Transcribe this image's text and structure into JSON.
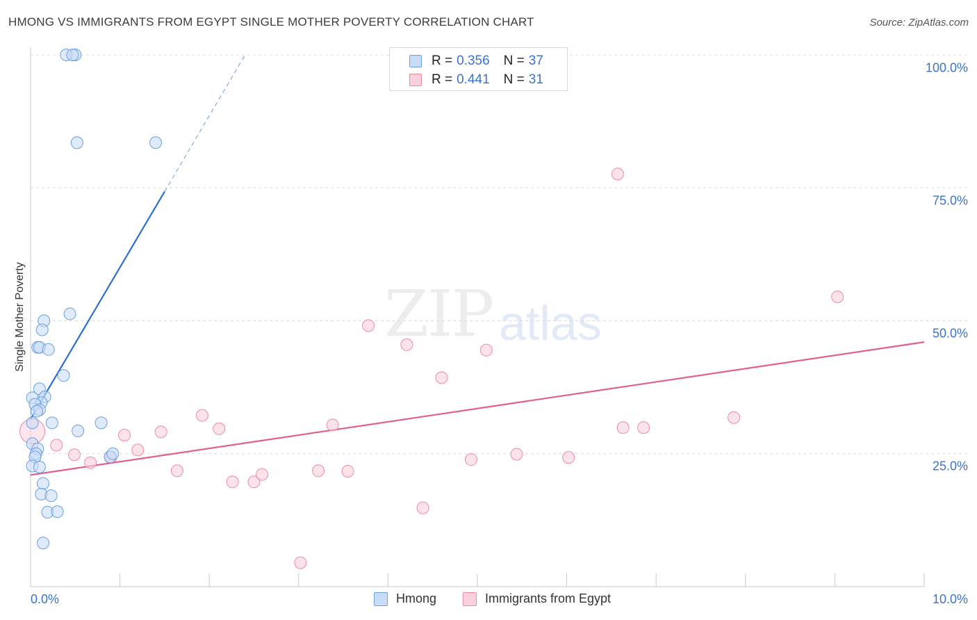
{
  "header": {
    "title": "HMONG VS IMMIGRANTS FROM EGYPT SINGLE MOTHER POVERTY CORRELATION CHART",
    "source": "Source: ZipAtlas.com"
  },
  "watermark": {
    "part1": "ZIP",
    "part2": "atlas"
  },
  "colors": {
    "hmong": "#6a9fe0",
    "hmong_fill": "#c9dcf6",
    "hmong_line": "#2b6fcc",
    "egypt": "#ee8aa8",
    "egypt_fill": "#f9d0dc",
    "egypt_line": "#e0608c",
    "tick": "#3b73c8",
    "grid": "#dcdcdc"
  },
  "legend": {
    "rows": [
      {
        "r_label": "R =",
        "r_value": "0.356",
        "n_label": "N =",
        "n_value": "37"
      },
      {
        "r_label": "R =",
        "r_value": "0.441",
        "n_label": "N =",
        "n_value": "31"
      }
    ]
  },
  "bottom_legend": [
    "Hmong",
    "Immigrants from Egypt"
  ],
  "chart_data": {
    "type": "scatter",
    "title": "HMONG VS IMMIGRANTS FROM EGYPT SINGLE MOTHER POVERTY CORRELATION CHART",
    "xlabel": "",
    "ylabel": "Single Mother Poverty",
    "xlim": [
      0,
      10
    ],
    "ylim": [
      0,
      102
    ],
    "x_ticks": [
      "0.0%",
      "10.0%"
    ],
    "y_ticks": [
      {
        "value": 25,
        "label": "25.0%"
      },
      {
        "value": 50,
        "label": "50.0%"
      },
      {
        "value": 75,
        "label": "75.0%"
      },
      {
        "value": 100,
        "label": "100.0%"
      }
    ],
    "grid": true,
    "series": [
      {
        "name": "Hmong",
        "points": [
          [
            0.5,
            100
          ],
          [
            0.4,
            100
          ],
          [
            0.47,
            100
          ],
          [
            0.52,
            83.5
          ],
          [
            1.4,
            83.5
          ],
          [
            0.44,
            51.3
          ],
          [
            0.15,
            50.0
          ],
          [
            0.13,
            48.3
          ],
          [
            0.08,
            45.0
          ],
          [
            0.1,
            45.0
          ],
          [
            0.2,
            44.6
          ],
          [
            0.37,
            39.7
          ],
          [
            0.1,
            37.2
          ],
          [
            0.16,
            35.7
          ],
          [
            0.02,
            35.5
          ],
          [
            0.12,
            34.6
          ],
          [
            0.05,
            34.3
          ],
          [
            0.1,
            33.3
          ],
          [
            0.07,
            33.0
          ],
          [
            0.02,
            30.8
          ],
          [
            0.24,
            30.8
          ],
          [
            0.79,
            30.8
          ],
          [
            0.53,
            29.3
          ],
          [
            0.02,
            26.9
          ],
          [
            0.08,
            25.9
          ],
          [
            0.06,
            25.0
          ],
          [
            0.05,
            24.4
          ],
          [
            0.89,
            24.4
          ],
          [
            0.92,
            25.0
          ],
          [
            0.02,
            22.7
          ],
          [
            0.1,
            22.5
          ],
          [
            0.14,
            19.4
          ],
          [
            0.12,
            17.4
          ],
          [
            0.23,
            17.1
          ],
          [
            0.19,
            14.0
          ],
          [
            0.3,
            14.1
          ],
          [
            0.14,
            8.2
          ]
        ]
      },
      {
        "name": "Immigrants from Egypt",
        "points": [
          [
            0.02,
            29.2
          ],
          [
            0.29,
            26.6
          ],
          [
            0.49,
            24.8
          ],
          [
            0.67,
            23.3
          ],
          [
            1.05,
            28.5
          ],
          [
            1.2,
            25.7
          ],
          [
            0.9,
            24.4
          ],
          [
            1.46,
            29.1
          ],
          [
            1.64,
            21.8
          ],
          [
            1.92,
            32.2
          ],
          [
            2.11,
            29.7
          ],
          [
            2.26,
            19.7
          ],
          [
            2.5,
            19.7
          ],
          [
            2.59,
            21.1
          ],
          [
            3.02,
            4.5
          ],
          [
            3.22,
            21.8
          ],
          [
            3.38,
            30.4
          ],
          [
            3.55,
            21.7
          ],
          [
            3.78,
            49.1
          ],
          [
            4.21,
            45.5
          ],
          [
            4.39,
            14.8
          ],
          [
            4.6,
            39.3
          ],
          [
            4.93,
            23.9
          ],
          [
            5.1,
            44.5
          ],
          [
            5.44,
            24.9
          ],
          [
            6.02,
            24.3
          ],
          [
            6.57,
            77.6
          ],
          [
            6.63,
            29.9
          ],
          [
            6.86,
            29.9
          ],
          [
            7.87,
            31.8
          ],
          [
            9.03,
            54.5
          ]
        ]
      }
    ],
    "trendlines": [
      {
        "series": "Hmong",
        "x1": 0,
        "y1": 31.5,
        "x2": 1.5,
        "y2": 74.3,
        "dashed_to_x": 2.4,
        "dashed_to_y": 100
      },
      {
        "series": "Immigrants from Egypt",
        "x1": 0,
        "y1": 21.0,
        "x2": 10.0,
        "y2": 46.0
      }
    ]
  }
}
